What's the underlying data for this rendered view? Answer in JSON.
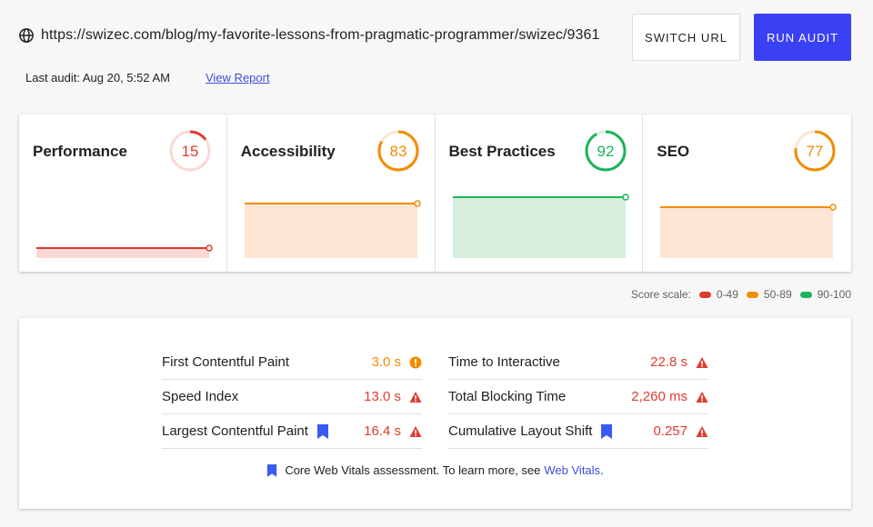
{
  "header": {
    "url": "https://swizec.com/blog/my-favorite-lessons-from-pragmatic-programmer/swizec/9361",
    "last_audit": "Last audit: Aug 20, 5:52 AM",
    "view_report": "View Report",
    "switch_url": "SWITCH URL",
    "run_audit": "RUN AUDIT"
  },
  "scores": [
    {
      "title": "Performance",
      "score": "15",
      "color": "#e03a2f",
      "fill": "#fbd8d4"
    },
    {
      "title": "Accessibility",
      "score": "83",
      "color": "#f28c00",
      "fill": "#fde6d3"
    },
    {
      "title": "Best Practices",
      "score": "92",
      "color": "#1eb45a",
      "fill": "#d6f0dd"
    },
    {
      "title": "SEO",
      "score": "77",
      "color": "#f28c00",
      "fill": "#fde6d3"
    }
  ],
  "scale": {
    "label": "Score scale:",
    "ranges": [
      {
        "label": "0-49",
        "color": "#e03a2f"
      },
      {
        "label": "50-89",
        "color": "#f28c00"
      },
      {
        "label": "90-100",
        "color": "#1eb45a"
      }
    ]
  },
  "metrics": {
    "left": [
      {
        "label": "First Contentful Paint",
        "value": "3.0 s",
        "status": "average",
        "core": false
      },
      {
        "label": "Speed Index",
        "value": "13.0 s",
        "status": "poor",
        "core": false
      },
      {
        "label": "Largest Contentful Paint",
        "value": "16.4 s",
        "status": "poor",
        "core": true
      }
    ],
    "right": [
      {
        "label": "Time to Interactive",
        "value": "22.8 s",
        "status": "poor",
        "core": false
      },
      {
        "label": "Total Blocking Time",
        "value": "2,260 ms",
        "status": "poor",
        "core": false
      },
      {
        "label": "Cumulative Layout Shift",
        "value": "0.257",
        "status": "poor",
        "core": true
      }
    ],
    "footnote": "Core Web Vitals assessment. To learn more, see",
    "footnote_link": "Web Vitals",
    "footnote_end": "."
  }
}
